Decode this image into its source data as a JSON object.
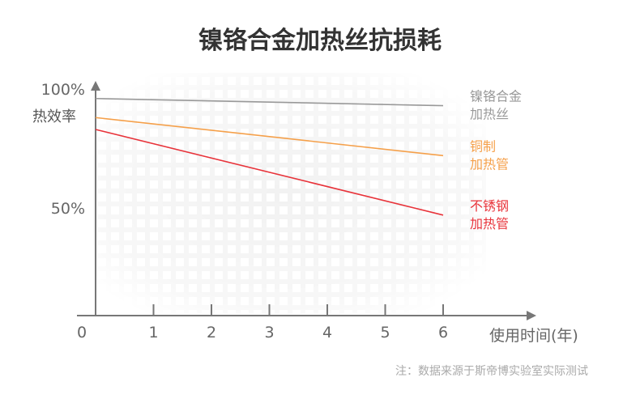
{
  "chart_data": {
    "type": "line",
    "title": "镍铬合金加热丝抗损耗",
    "xlabel": "使用时间(年)",
    "ylabel": "热效率",
    "x_ticks": [
      0,
      1,
      2,
      3,
      4,
      5,
      6
    ],
    "y_ticks": [
      "100%",
      "50%"
    ],
    "xlim": [
      0,
      6
    ],
    "ylim": [
      0,
      100
    ],
    "grid": true,
    "series": [
      {
        "name": "镍铬合金加热丝",
        "name_lines": [
          "镍铬合金",
          "加热丝"
        ],
        "color": "#999999",
        "x": [
          0,
          6
        ],
        "y": [
          96,
          93
        ]
      },
      {
        "name": "铜制加热管",
        "name_lines": [
          "铜制",
          "加热管"
        ],
        "color": "#f5a04a",
        "x": [
          0,
          6
        ],
        "y": [
          88,
          72
        ]
      },
      {
        "name": "不锈钢加热管",
        "name_lines": [
          "不锈钢",
          "加热管"
        ],
        "color": "#e8333a",
        "x": [
          0,
          6
        ],
        "y": [
          83,
          47
        ]
      }
    ],
    "note": "注：数据来源于斯帝博实验室实际测试"
  }
}
